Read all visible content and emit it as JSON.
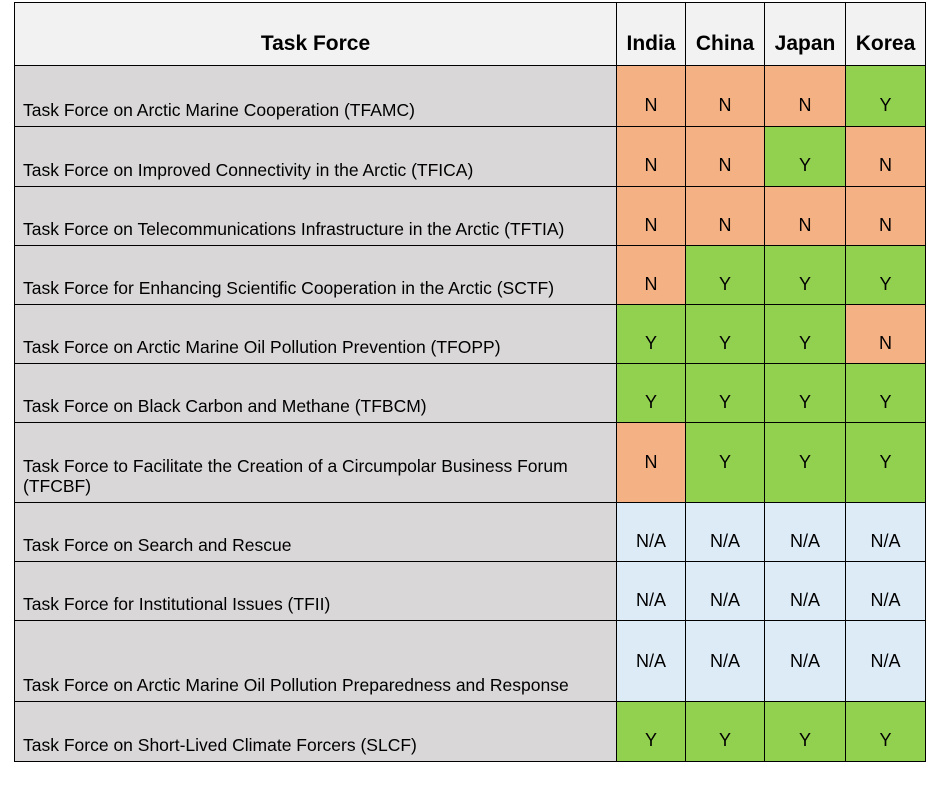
{
  "table": {
    "headers": [
      "Task Force",
      "India",
      "China",
      "Japan",
      "Korea"
    ],
    "rows": [
      {
        "task": "Task Force on Arctic Marine Cooperation (TFAMC)",
        "values": [
          "N",
          "N",
          "N",
          "Y"
        ]
      },
      {
        "task": "Task Force on Improved Connectivity in the Arctic (TFICA)",
        "values": [
          "N",
          "N",
          "Y",
          "N"
        ]
      },
      {
        "task": "Task Force on Telecommunications Infrastructure in the Arctic (TFTIA)",
        "values": [
          "N",
          "N",
          "N",
          "N"
        ]
      },
      {
        "task": "Task Force for Enhancing Scientific Cooperation in the Arctic (SCTF)",
        "values": [
          "N",
          "Y",
          "Y",
          "Y"
        ]
      },
      {
        "task": "Task Force on Arctic Marine Oil Pollution Prevention (TFOPP)",
        "values": [
          "Y",
          "Y",
          "Y",
          "N"
        ]
      },
      {
        "task": "Task Force on Black Carbon and Methane (TFBCM)",
        "values": [
          "Y",
          "Y",
          "Y",
          "Y"
        ]
      },
      {
        "task": "Task Force to Facilitate the Creation of a Circumpolar Business Forum (TFCBF)",
        "values": [
          "N",
          "Y",
          "Y",
          "Y"
        ]
      },
      {
        "task": "Task Force on Search and Rescue",
        "values": [
          "N/A",
          "N/A",
          "N/A",
          "N/A"
        ]
      },
      {
        "task": "Task Force for Institutional Issues (TFII)",
        "values": [
          "N/A",
          "N/A",
          "N/A",
          "N/A"
        ]
      },
      {
        "task": "Task Force on Arctic Marine Oil Pollution Preparedness and Response",
        "values": [
          "N/A",
          "N/A",
          "N/A",
          "N/A"
        ]
      },
      {
        "task": "Task Force on Short-Lived Climate Forcers (SLCF)",
        "values": [
          "Y",
          "Y",
          "Y",
          "Y"
        ]
      }
    ]
  },
  "colors": {
    "yes": "#92d050",
    "no": "#f4b183",
    "not_applicable": "#ddebf7",
    "task_cell": "#d9d7d7",
    "header": "#f2f2f2"
  }
}
